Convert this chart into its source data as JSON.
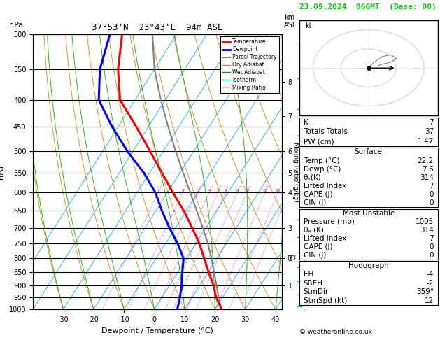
{
  "title_left": "37°53'N  23°43'E  94m ASL",
  "title_right": "23.09.2024  06GMT  (Base: 00)",
  "xlabel": "Dewpoint / Temperature (°C)",
  "ylabel_left": "hPa",
  "pressure_levels": [
    300,
    350,
    400,
    450,
    500,
    550,
    600,
    650,
    700,
    750,
    800,
    850,
    900,
    950,
    1000
  ],
  "temp_range_plot": [
    -40,
    42
  ],
  "temp_ticks": [
    -30,
    -20,
    -10,
    0,
    10,
    20,
    30,
    40
  ],
  "km_levels": [
    1,
    2,
    3,
    4,
    5,
    6,
    7,
    8
  ],
  "km_pressures": [
    900,
    800,
    700,
    600,
    550,
    500,
    430,
    370
  ],
  "lcl_pressure": 800,
  "temp_profile_T": [
    22.2,
    18.0,
    14.5,
    10.2,
    5.8,
    1.2,
    -4.5,
    -10.8,
    -18.2,
    -26.0,
    -34.5,
    -44.0,
    -55.0,
    -62.0,
    -68.0
  ],
  "temp_profile_P": [
    1000,
    950,
    900,
    850,
    800,
    750,
    700,
    650,
    600,
    550,
    500,
    450,
    400,
    350,
    300
  ],
  "dewp_profile_T": [
    7.6,
    6.0,
    4.0,
    1.5,
    -1.0,
    -6.0,
    -12.0,
    -18.0,
    -24.0,
    -32.0,
    -42.0,
    -52.0,
    -62.0,
    -68.0,
    -72.0
  ],
  "dewp_profile_P": [
    1000,
    950,
    900,
    850,
    800,
    750,
    700,
    650,
    600,
    550,
    500,
    450,
    400,
    350,
    300
  ],
  "parcel_profile_T": [
    22.2,
    18.8,
    15.5,
    12.0,
    8.2,
    4.0,
    -1.0,
    -6.5,
    -12.5,
    -19.0,
    -26.0,
    -33.5,
    -41.5,
    -50.0,
    -58.0
  ],
  "parcel_profile_P": [
    1000,
    950,
    900,
    850,
    800,
    750,
    700,
    650,
    600,
    550,
    500,
    450,
    400,
    350,
    300
  ],
  "color_temp": "#ff0000",
  "color_dewp": "#0000ff",
  "color_parcel": "#808080",
  "color_dry_adiabat": "#cc8800",
  "color_wet_adiabat": "#00aa00",
  "color_isotherm": "#00aaff",
  "color_mixing": "#cc00cc",
  "color_title_right": "#00cc00",
  "K_index": 7,
  "totals_totals": 37,
  "PW_cm": "1.47",
  "surf_temp": "22.2",
  "surf_dewp": "7.6",
  "surf_theta_e": "314",
  "surf_lifted_index": "7",
  "surf_CAPE": "0",
  "surf_CIN": "0",
  "mu_pressure": "1005",
  "mu_theta_e": "314",
  "mu_lifted_index": "7",
  "mu_CAPE": "0",
  "mu_CIN": "0",
  "hodo_EH": "-4",
  "hodo_SREH": "-2",
  "hodo_StmDir": "359°",
  "hodo_StmSpd": "12",
  "copyright": "© weatheronline.co.uk",
  "skew_factor": 0.7,
  "wind_colors": [
    "#ffcc00",
    "#00cc00",
    "#00cc00",
    "#00cc00",
    "#00cc00",
    "#00cc00",
    "#00cc00",
    "#00cc00",
    "#00cc00",
    "#00cc00",
    "#00cc00",
    "#00cc00",
    "#00cc00",
    "#00cc00",
    "#00aaff"
  ]
}
